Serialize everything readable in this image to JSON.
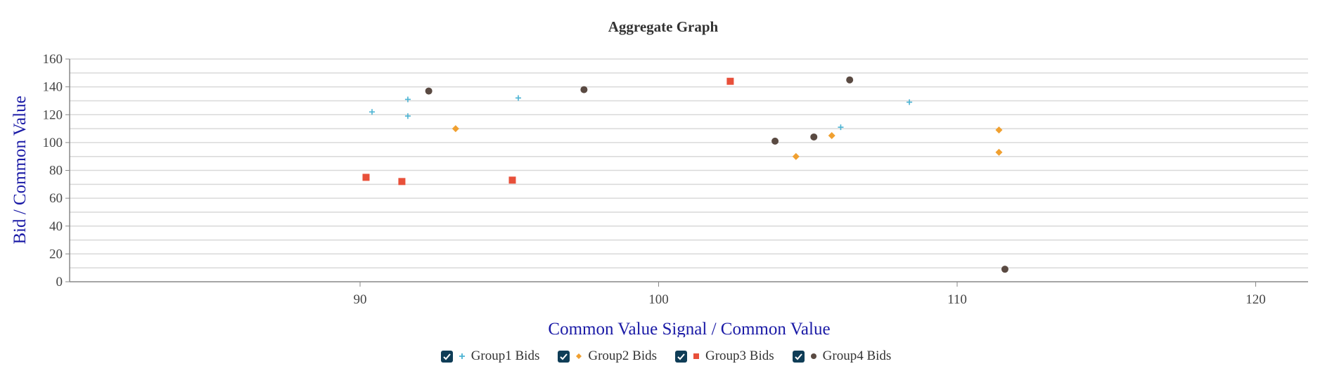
{
  "chart_data": {
    "type": "scatter",
    "title": "Aggregate Graph",
    "xlabel": "Common Value Signal / Common Value",
    "ylabel": "Bid / Common Value",
    "xlim": [
      81,
      121.5
    ],
    "ylim": [
      0,
      160
    ],
    "x_ticks": [
      90,
      100,
      110,
      120
    ],
    "y_ticks": [
      0,
      20,
      40,
      60,
      80,
      100,
      120,
      140,
      160
    ],
    "y_grid_step": 10,
    "grid": true,
    "legend_position": "bottom",
    "series": [
      {
        "name": "Group1 Bids",
        "marker": "plus",
        "color": "#4bb3d3",
        "checked": true,
        "points": [
          [
            90.4,
            122
          ],
          [
            91.6,
            131
          ],
          [
            91.6,
            119
          ],
          [
            95.3,
            132
          ],
          [
            106.1,
            111
          ],
          [
            108.4,
            129
          ]
        ]
      },
      {
        "name": "Group2 Bids",
        "marker": "diamond",
        "color": "#f0a030",
        "checked": true,
        "points": [
          [
            93.2,
            110
          ],
          [
            104.6,
            90
          ],
          [
            105.8,
            105
          ],
          [
            111.4,
            109
          ],
          [
            111.4,
            93
          ]
        ]
      },
      {
        "name": "Group3 Bids",
        "marker": "square",
        "color": "#e8503a",
        "checked": true,
        "points": [
          [
            90.2,
            75
          ],
          [
            91.4,
            72
          ],
          [
            95.1,
            73
          ],
          [
            102.4,
            144
          ]
        ]
      },
      {
        "name": "Group4 Bids",
        "marker": "circle",
        "color": "#5a4a42",
        "checked": true,
        "points": [
          [
            92.3,
            137
          ],
          [
            97.5,
            138
          ],
          [
            103.9,
            101
          ],
          [
            105.2,
            104
          ],
          [
            106.4,
            145
          ],
          [
            111.6,
            9
          ]
        ]
      }
    ]
  },
  "colors": {
    "axis_title": "#1a1aa6",
    "grid": "#d9d9d9",
    "checkbox": "#0f3d57"
  }
}
